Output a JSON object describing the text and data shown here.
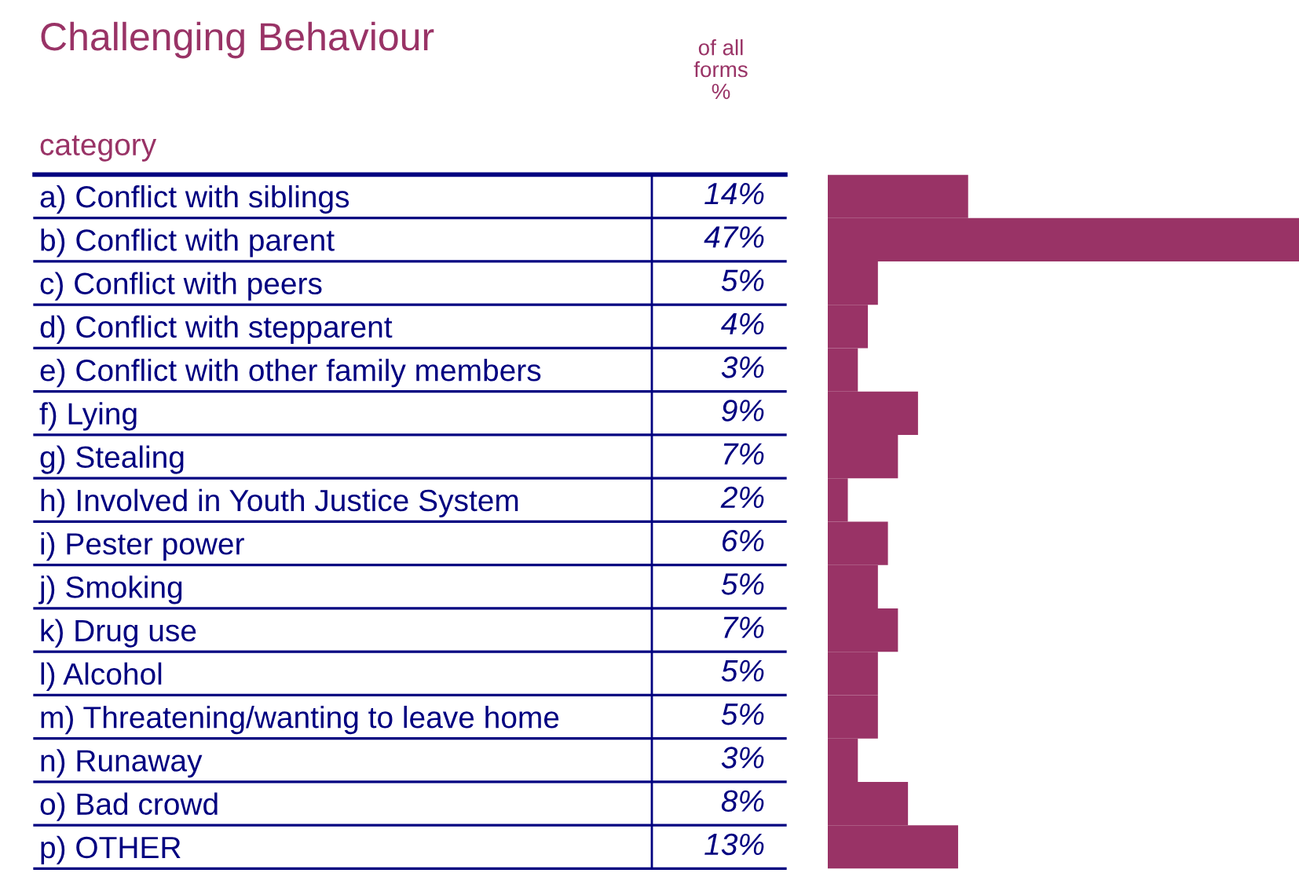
{
  "chart_data": {
    "type": "bar",
    "orientation": "horizontal",
    "title": "Challenging Behaviour",
    "xlabel": "of all\nforms\n%",
    "ylabel": "category",
    "categories": [
      "a) Conflict with siblings",
      "b) Conflict with parent",
      "c) Conflict with peers",
      "d) Conflict with stepparent",
      "e) Conflict with other family members",
      "f) Lying",
      "g) Stealing",
      "h) Involved in Youth Justice System",
      "i) Pester power",
      "j) Smoking",
      "k) Drug use",
      "l) Alcohol",
      "m) Threatening/wanting to leave home",
      "n) Runaway",
      "o) Bad crowd",
      "p) OTHER"
    ],
    "series": [
      {
        "color": "#993366",
        "values": [
          14,
          47,
          5,
          4,
          3,
          9,
          7,
          2,
          6,
          5,
          7,
          5,
          5,
          3,
          8,
          13
        ],
        "value_labels": [
          "14%",
          "47%",
          "5%",
          "4%",
          "3%",
          "9%",
          "7%",
          "2%",
          "6%",
          "5%",
          "7%",
          "5%",
          "5%",
          "3%",
          "8%",
          "13%"
        ]
      }
    ]
  }
}
